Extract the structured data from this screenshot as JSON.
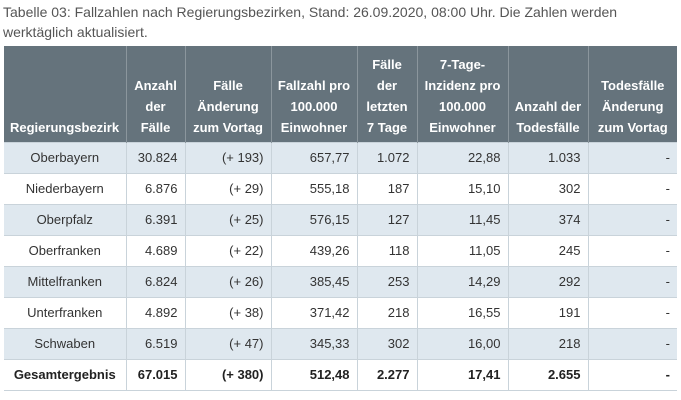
{
  "caption": "Tabelle 03: Fallzahlen nach Regierungsbezirken, Stand: 26.09.2020, 08:00 Uhr. Die Zahlen werden werktäglich aktualisiert.",
  "columns": [
    "Regierungsbezirk",
    "Anzahl der Fälle",
    "Fälle Änderung zum Vortag",
    "Fallzahl pro 100.000 Einwohner",
    "Fälle der letzten 7 Tage",
    "7-Tage-Inzidenz pro 100.000 Einwohner",
    "Anzahl der Todesfälle",
    "Todesfälle Änderung zum Vortag"
  ],
  "rows": [
    [
      "Oberbayern",
      "30.824",
      "(+ 193)",
      "657,77",
      "1.072",
      "22,88",
      "1.033",
      "-"
    ],
    [
      "Niederbayern",
      "6.876",
      "(+ 29)",
      "555,18",
      "187",
      "15,10",
      "302",
      "-"
    ],
    [
      "Oberpfalz",
      "6.391",
      "(+ 25)",
      "576,15",
      "127",
      "11,45",
      "374",
      "-"
    ],
    [
      "Oberfranken",
      "4.689",
      "(+ 22)",
      "439,26",
      "118",
      "11,05",
      "245",
      "-"
    ],
    [
      "Mittelfranken",
      "6.824",
      "(+ 26)",
      "385,45",
      "253",
      "14,29",
      "292",
      "-"
    ],
    [
      "Unterfranken",
      "4.892",
      "(+ 38)",
      "371,42",
      "218",
      "16,55",
      "191",
      "-"
    ],
    [
      "Schwaben",
      "6.519",
      "(+ 47)",
      "345,33",
      "302",
      "16,00",
      "218",
      "-"
    ]
  ],
  "total": [
    "Gesamtergebnis",
    "67.015",
    "(+ 380)",
    "512,48",
    "2.277",
    "17,41",
    "2.655",
    "-"
  ],
  "colors": {
    "header_bg": "#65737c",
    "odd_row_bg": "#dfe8ef",
    "even_row_bg": "#ffffff"
  }
}
